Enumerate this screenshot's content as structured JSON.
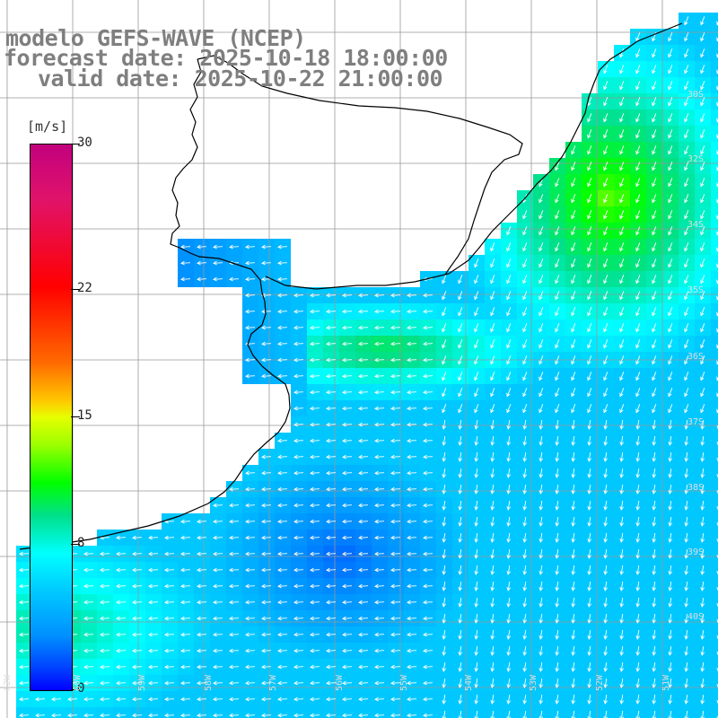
{
  "title": {
    "line1": "modelo GEFS-WAVE (NCEP)",
    "line2": "forecast date: 2025-10-18 18:00:00",
    "line3": "valid date: 2025-10-22 21:00:00"
  },
  "colorbar": {
    "units": "[m/s]",
    "ticks": [
      "30",
      "22",
      "15",
      "8",
      "0"
    ],
    "tick_values": [
      30,
      22,
      15,
      8,
      0
    ],
    "min": 0,
    "max": 30
  },
  "grid": {
    "lat_labels": [
      "30S",
      "32S",
      "34S",
      "35S",
      "36S",
      "37S",
      "38S",
      "39S",
      "40S"
    ],
    "lon_labels": [
      "62W",
      "60W",
      "59W",
      "58W",
      "57W",
      "56W",
      "55W",
      "54W",
      "53W",
      "52W",
      "51W"
    ]
  },
  "field": {
    "variable": "wind speed and direction",
    "colors": {
      "land": "#ffffff",
      "coastline": "#000000",
      "grid": "#999999",
      "arrows": "#ffffff"
    },
    "regions": [
      {
        "area": "northeast offshore",
        "speed_range": [
          11,
          14
        ],
        "direction": "from NE"
      },
      {
        "area": "river plate mouth",
        "speed_range": [
          10,
          12
        ],
        "direction": "from E"
      },
      {
        "area": "inner estuary",
        "speed_range": [
          3,
          5
        ],
        "direction": "from E"
      },
      {
        "area": "south central shelf",
        "speed_range": [
          4,
          7
        ],
        "direction": "from E"
      },
      {
        "area": "southwest",
        "speed_range": [
          9,
          11
        ],
        "direction": "from E"
      }
    ]
  }
}
